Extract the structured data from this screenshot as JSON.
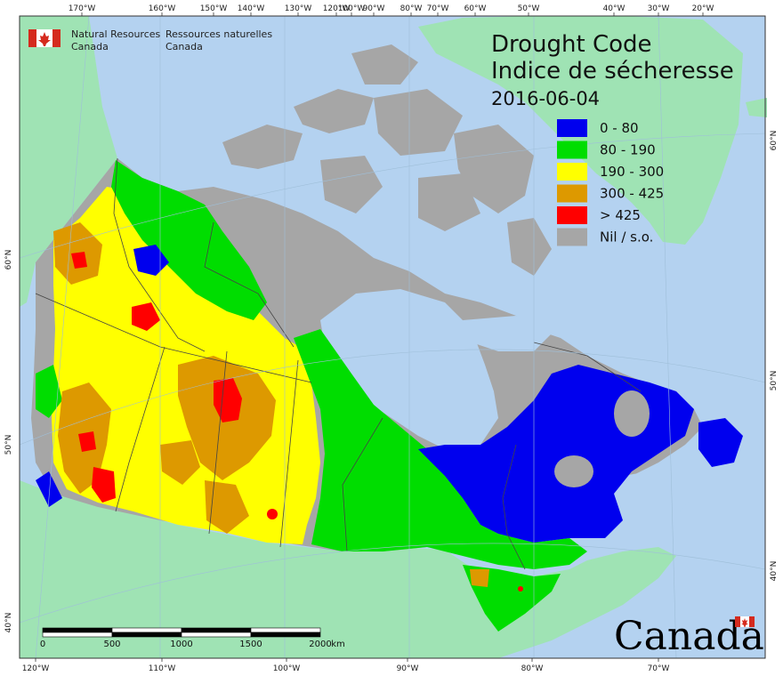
{
  "agency": {
    "en_line1": "Natural Resources",
    "en_line2": "Canada",
    "fr_line1": "Ressources naturelles",
    "fr_line2": "Canada"
  },
  "title": {
    "line1": "Drought Code",
    "line2": "Indice de sécheresse",
    "date": "2016-06-04"
  },
  "legend": [
    {
      "label": "0 - 80",
      "color": "#0000ee"
    },
    {
      "label": "80 - 190",
      "color": "#00dd00"
    },
    {
      "label": "190 - 300",
      "color": "#ffff00"
    },
    {
      "label": "300 - 425",
      "color": "#dd9900"
    },
    {
      "label": "> 425",
      "color": "#ff0000"
    },
    {
      "label": "Nil / s.o.",
      "color": "#a6a6a6"
    }
  ],
  "colors": {
    "ocean": "#b4d2f0",
    "foreign_land": "#9fe3b4",
    "no_data": "#a6a6a6",
    "flag_red": "#d52b1e"
  },
  "top_ticks": [
    "170°W",
    "160°W",
    "150°W",
    "140°W",
    "130°W",
    "120°W",
    "100°W",
    "90°W",
    "80°W",
    "70°W",
    "60°W",
    "50°W",
    "40°W",
    "30°W",
    "20°W"
  ],
  "bottom_ticks": [
    "120°W",
    "110°W",
    "100°W",
    "90°W",
    "80°W",
    "70°W"
  ],
  "left_ticks": [
    "60°N",
    "50°N",
    "40°N"
  ],
  "right_ticks": [
    "60°N",
    "50°N",
    "40°N"
  ],
  "scale_bar": {
    "labels": [
      "0",
      "500",
      "1000",
      "1500",
      "2000"
    ],
    "unit": "km"
  },
  "wordmark": "Canada"
}
